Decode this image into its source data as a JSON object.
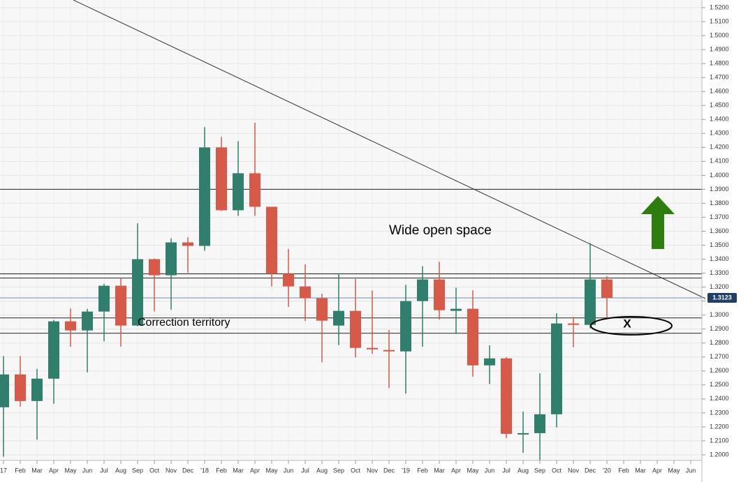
{
  "chart_data": {
    "type": "candlestick",
    "categories": [
      "17",
      "Feb",
      "Mar",
      "Apr",
      "May",
      "Jun",
      "Jul",
      "Aug",
      "Sep",
      "Oct",
      "Nov",
      "Dec",
      "'18",
      "Feb",
      "Mar",
      "Apr",
      "May",
      "Jun",
      "Jul",
      "Aug",
      "Sep",
      "Oct",
      "Nov",
      "Dec",
      "'19",
      "Feb",
      "Mar",
      "Apr",
      "May",
      "Jun",
      "Jul",
      "Aug",
      "Sep",
      "Oct",
      "Nov",
      "Dec",
      "'20",
      "Feb",
      "Mar",
      "Apr",
      "May",
      "Jun"
    ],
    "open": [
      1.234,
      1.2575,
      1.2385,
      1.2545,
      1.2955,
      1.289,
      1.3025,
      1.321,
      1.2925,
      1.34,
      1.3285,
      1.352,
      1.3495,
      1.42,
      1.375,
      1.4015,
      1.3775,
      1.3295,
      1.3205,
      1.312,
      1.2925,
      1.303,
      1.2765,
      1.275,
      1.274,
      1.31,
      1.3255,
      1.303,
      1.3045,
      1.264,
      1.269,
      1.215,
      1.2155,
      1.229,
      1.294,
      1.293,
      1.3255,
      null,
      null,
      null,
      null,
      null
    ],
    "high": [
      1.2706,
      1.2706,
      1.2615,
      1.2965,
      1.3047,
      1.3045,
      1.3223,
      1.3265,
      1.3657,
      1.3405,
      1.3549,
      1.3557,
      1.4345,
      1.4275,
      1.4245,
      1.4377,
      1.3775,
      1.3473,
      1.3363,
      1.3153,
      1.3298,
      1.3258,
      1.3176,
      1.2893,
      1.3216,
      1.335,
      1.3381,
      1.3196,
      1.3177,
      1.2783,
      1.2699,
      1.2309,
      1.2583,
      1.3013,
      1.2986,
      1.3515,
      1.3278,
      null,
      null,
      null,
      null,
      null
    ],
    "low": [
      1.1986,
      1.2345,
      1.2109,
      1.2365,
      1.2772,
      1.259,
      1.2812,
      1.2774,
      1.292,
      1.3027,
      1.3039,
      1.3302,
      1.346,
      1.3745,
      1.371,
      1.371,
      1.3205,
      1.3058,
      1.2957,
      1.2662,
      1.2785,
      1.2696,
      1.2723,
      1.2477,
      1.2438,
      1.2773,
      1.2968,
      1.2865,
      1.2559,
      1.2506,
      1.212,
      1.2015,
      1.1958,
      1.2195,
      1.2769,
      1.2905,
      1.2983,
      null,
      null,
      null,
      null,
      null
    ],
    "close": [
      1.2575,
      1.2385,
      1.2545,
      1.2955,
      1.289,
      1.3025,
      1.321,
      1.2925,
      1.34,
      1.3285,
      1.352,
      1.3495,
      1.42,
      1.375,
      1.4015,
      1.3775,
      1.3295,
      1.3205,
      1.312,
      1.296,
      1.303,
      1.2765,
      1.2755,
      1.274,
      1.31,
      1.3255,
      1.3035,
      1.3045,
      1.264,
      1.269,
      1.215,
      1.2155,
      1.229,
      1.294,
      1.293,
      1.3255,
      1.3123,
      null,
      null,
      null,
      null,
      null
    ],
    "up_color": "#2f7f6c",
    "down_color": "#d65a47",
    "ylim": [
      1.196,
      1.5255
    ],
    "yticks": [
      {
        "value": 1.2,
        "label": "1.2000"
      },
      {
        "value": 1.21,
        "label": "1.2100"
      },
      {
        "value": 1.22,
        "label": "1.2200"
      },
      {
        "value": 1.23,
        "label": "1.2300"
      },
      {
        "value": 1.24,
        "label": "1.2400"
      },
      {
        "value": 1.25,
        "label": "1.2500"
      },
      {
        "value": 1.26,
        "label": "1.2600"
      },
      {
        "value": 1.27,
        "label": "1.2700"
      },
      {
        "value": 1.28,
        "label": "1.2800"
      },
      {
        "value": 1.29,
        "label": "1.2900"
      },
      {
        "value": 1.3,
        "label": "1.3000"
      },
      {
        "value": 1.31,
        "label": "1.3100"
      },
      {
        "value": 1.32,
        "label": "1.3200"
      },
      {
        "value": 1.33,
        "label": "1.3300"
      },
      {
        "value": 1.34,
        "label": "1.3400"
      },
      {
        "value": 1.35,
        "label": "1.3500"
      },
      {
        "value": 1.36,
        "label": "1.3600"
      },
      {
        "value": 1.37,
        "label": "1.3700"
      },
      {
        "value": 1.38,
        "label": "1.3800"
      },
      {
        "value": 1.39,
        "label": "1.3900"
      },
      {
        "value": 1.4,
        "label": "1.4000"
      },
      {
        "value": 1.41,
        "label": "1.4100"
      },
      {
        "value": 1.42,
        "label": "1.4200"
      },
      {
        "value": 1.43,
        "label": "1.4300"
      },
      {
        "value": 1.44,
        "label": "1.4400"
      },
      {
        "value": 1.45,
        "label": "1.4500"
      },
      {
        "value": 1.46,
        "label": "1.4600"
      },
      {
        "value": 1.47,
        "label": "1.4700"
      },
      {
        "value": 1.48,
        "label": "1.4800"
      },
      {
        "value": 1.49,
        "label": "1.4900"
      },
      {
        "value": 1.5,
        "label": "1.5000"
      },
      {
        "value": 1.51,
        "label": "1.5100"
      },
      {
        "value": 1.52,
        "label": "1.5200"
      }
    ],
    "grid": true,
    "levels": [
      1.39,
      1.3295,
      1.3265,
      1.298,
      1.287
    ],
    "last_price": 1.3123,
    "annotations": [
      "Wide open space",
      "Correction territory",
      "X"
    ]
  }
}
